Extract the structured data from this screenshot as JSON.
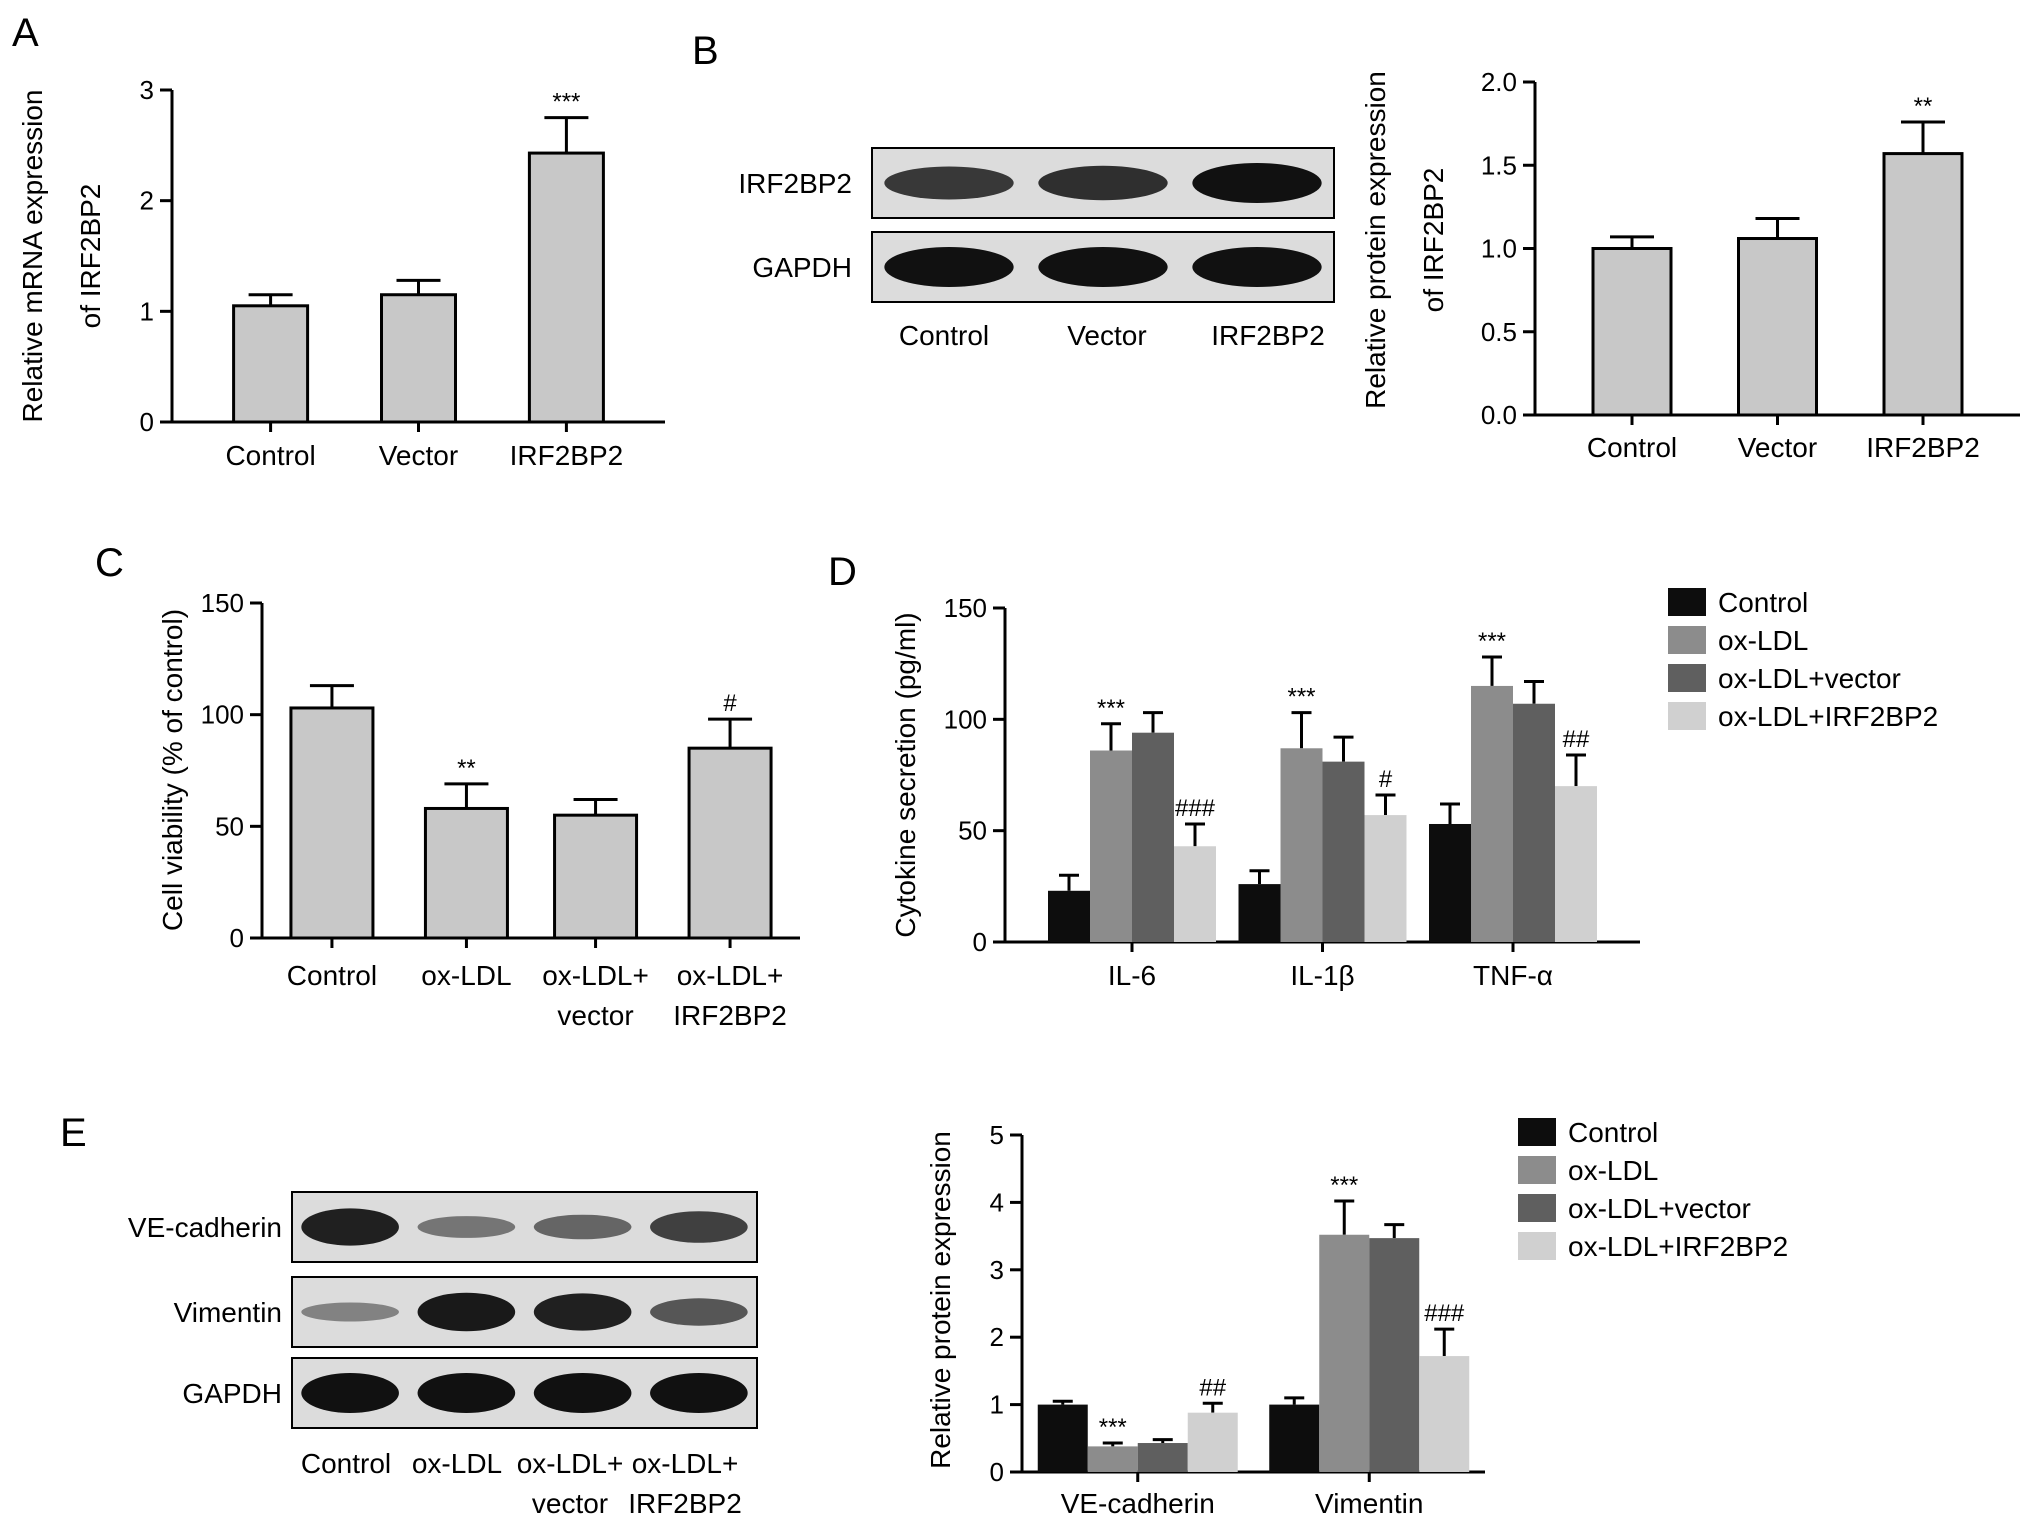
{
  "figure": {
    "panel_labels": [
      "A",
      "B",
      "C",
      "D",
      "E"
    ]
  },
  "colors": {
    "gray_bar": "#c8c8c8",
    "control": "#0d0d0d",
    "ox_ldl": "#8c8c8c",
    "ox_ldl_vector": "#5f5f5f",
    "ox_ldl_irf2bp2": "#d0d0d0",
    "blot_bg": "#dcdcdc",
    "band": "#111111"
  },
  "blots": [
    {
      "panel": "B",
      "lane_labels": [
        [
          "Control"
        ],
        [
          "Vector"
        ],
        [
          "IRF2BP2"
        ]
      ],
      "rows": [
        {
          "label": "IRF2BP2",
          "intensity": [
            0.75,
            0.8,
            1.0
          ]
        },
        {
          "label": "GAPDH",
          "intensity": [
            1.0,
            1.0,
            1.0
          ]
        }
      ]
    },
    {
      "panel": "E",
      "lane_labels": [
        [
          "Control"
        ],
        [
          "ox-LDL"
        ],
        [
          "ox-LDL+",
          "vector"
        ],
        [
          "ox-LDL+",
          "IRF2BP2"
        ]
      ],
      "rows": [
        {
          "label": "VE-cadherin",
          "intensity": [
            0.9,
            0.35,
            0.45,
            0.7
          ]
        },
        {
          "label": "Vimentin",
          "intensity": [
            0.25,
            0.95,
            0.9,
            0.55
          ]
        },
        {
          "label": "GAPDH",
          "intensity": [
            1.0,
            1.0,
            1.0,
            1.0
          ]
        }
      ]
    }
  ],
  "chart_data": [
    {
      "panel": "A",
      "type": "bar",
      "categories": [
        [
          "Control"
        ],
        [
          "Vector"
        ],
        [
          "IRF2BP2"
        ]
      ],
      "series": [
        {
          "values": [
            1.05,
            1.15,
            2.43
          ],
          "errors": [
            0.1,
            0.13,
            0.32
          ],
          "sig": [
            "",
            "",
            "***"
          ]
        }
      ],
      "ylabel": [
        "Relative mRNA expression",
        "of IRF2BP2"
      ],
      "ylim": [
        0,
        3
      ],
      "yticks": [
        0,
        1,
        2,
        3
      ],
      "ytick_labels": [
        "0",
        "1",
        "2",
        "3"
      ],
      "legend": []
    },
    {
      "panel": "B",
      "type": "bar",
      "categories": [
        [
          "Control"
        ],
        [
          "Vector"
        ],
        [
          "IRF2BP2"
        ]
      ],
      "series": [
        {
          "values": [
            1.0,
            1.06,
            1.57
          ],
          "errors": [
            0.07,
            0.12,
            0.19
          ],
          "sig": [
            "",
            "",
            "**"
          ]
        }
      ],
      "ylabel": [
        "Relative protein expression",
        "of IRF2BP2"
      ],
      "ylim": [
        0,
        2.0
      ],
      "yticks": [
        0,
        0.5,
        1.0,
        1.5,
        2.0
      ],
      "ytick_labels": [
        "0.0",
        "0.5",
        "1.0",
        "1.5",
        "2.0"
      ],
      "legend": []
    },
    {
      "panel": "C",
      "type": "bar",
      "categories": [
        [
          "Control"
        ],
        [
          "ox-LDL"
        ],
        [
          "ox-LDL+",
          "vector"
        ],
        [
          "ox-LDL+",
          "IRF2BP2"
        ]
      ],
      "series": [
        {
          "values": [
            103,
            58,
            55,
            85
          ],
          "errors": [
            10,
            11,
            7,
            13
          ],
          "sig": [
            "",
            "**",
            "",
            "#"
          ]
        }
      ],
      "ylabel": [
        "Cell viability (% of control)"
      ],
      "ylim": [
        0,
        150
      ],
      "yticks": [
        0,
        50,
        100,
        150
      ],
      "ytick_labels": [
        "0",
        "50",
        "100",
        "150"
      ],
      "legend": []
    },
    {
      "panel": "D",
      "type": "bar",
      "categories": [
        [
          "IL-6"
        ],
        [
          "IL-1β"
        ],
        [
          "TNF-α"
        ]
      ],
      "series": [
        {
          "name": "Control",
          "values": [
            23,
            26,
            53
          ],
          "errors": [
            7,
            6,
            9
          ],
          "sig": [
            "",
            "",
            ""
          ]
        },
        {
          "name": "ox-LDL",
          "values": [
            86,
            87,
            115
          ],
          "errors": [
            12,
            16,
            13
          ],
          "sig": [
            "***",
            "***",
            "***"
          ]
        },
        {
          "name": "ox-LDL+vector",
          "values": [
            94,
            81,
            107
          ],
          "errors": [
            9,
            11,
            10
          ],
          "sig": [
            "",
            "",
            ""
          ]
        },
        {
          "name": "ox-LDL+IRF2BP2",
          "values": [
            43,
            57,
            70
          ],
          "errors": [
            10,
            9,
            14
          ],
          "sig": [
            "###",
            "#",
            "##"
          ]
        }
      ],
      "ylabel": [
        "Cytokine secretion (pg/ml)"
      ],
      "ylim": [
        0,
        150
      ],
      "yticks": [
        0,
        50,
        100,
        150
      ],
      "ytick_labels": [
        "0",
        "50",
        "100",
        "150"
      ],
      "legend": [
        "Control",
        "ox-LDL",
        "ox-LDL+vector",
        "ox-LDL+IRF2BP2"
      ]
    },
    {
      "panel": "E",
      "type": "bar",
      "categories": [
        [
          "VE-cadherin"
        ],
        [
          "Vimentin"
        ]
      ],
      "series": [
        {
          "name": "Control",
          "values": [
            1.0,
            1.0
          ],
          "errors": [
            0.05,
            0.1
          ],
          "sig": [
            "",
            ""
          ]
        },
        {
          "name": "ox-LDL",
          "values": [
            0.38,
            3.52
          ],
          "errors": [
            0.05,
            0.5
          ],
          "sig": [
            "***",
            "***"
          ]
        },
        {
          "name": "ox-LDL+vector",
          "values": [
            0.43,
            3.47
          ],
          "errors": [
            0.05,
            0.2
          ],
          "sig": [
            "",
            ""
          ]
        },
        {
          "name": "ox-LDL+IRF2BP2",
          "values": [
            0.88,
            1.72
          ],
          "errors": [
            0.14,
            0.4
          ],
          "sig": [
            "##",
            "###"
          ]
        }
      ],
      "ylabel": [
        "Relative protein expression"
      ],
      "ylim": [
        0,
        5
      ],
      "yticks": [
        0,
        1,
        2,
        3,
        4,
        5
      ],
      "ytick_labels": [
        "0",
        "1",
        "2",
        "3",
        "4",
        "5"
      ],
      "legend": [
        "Control",
        "ox-LDL",
        "ox-LDL+vector",
        "ox-LDL+IRF2BP2"
      ]
    }
  ]
}
